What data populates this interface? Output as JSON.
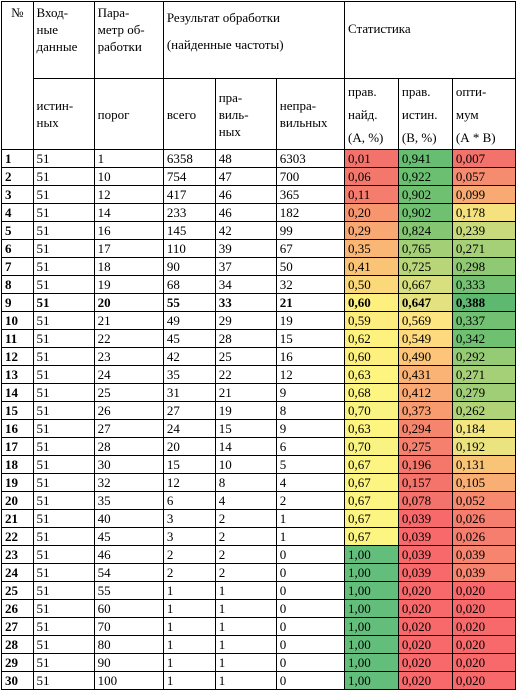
{
  "header": {
    "num": "№",
    "input_group": "Вход-\nные\nданные",
    "param_group": "Пара-\nметр об-\nработки",
    "result_group": "Результат обработки\n(найденные частоты)",
    "stats_group": "Статистика",
    "col_true": "истин-\nных",
    "col_threshold": "порог",
    "col_total": "всего",
    "col_correct": "пра-\nвиль-\nных",
    "col_wrong": "непра-\nвильных",
    "col_a": "прав.\nнайд.\n(А, %)",
    "col_b": "прав.\nистин.\n(В, %)",
    "col_ab": "опти-\nмум\n(А * В)"
  },
  "rows": [
    {
      "n": "1",
      "inp": "51",
      "thr": "1",
      "total": "6358",
      "corr": "48",
      "wrong": "6303",
      "a": "0,01",
      "b": "0,941",
      "ab": "0,007",
      "ca": "#f4726c",
      "cb": "#67bd71",
      "cab": "#f4726c"
    },
    {
      "n": "2",
      "inp": "51",
      "thr": "10",
      "total": "754",
      "corr": "47",
      "wrong": "700",
      "a": "0,06",
      "b": "0,922",
      "ab": "0,057",
      "ca": "#f4776c",
      "cb": "#6bbf71",
      "cab": "#f58c6f"
    },
    {
      "n": "3",
      "inp": "51",
      "thr": "12",
      "total": "417",
      "corr": "46",
      "wrong": "365",
      "a": "0,11",
      "b": "0,902",
      "ab": "0,099",
      "ca": "#f57d6d",
      "cb": "#70c071",
      "cab": "#f8aa72"
    },
    {
      "n": "4",
      "inp": "51",
      "thr": "14",
      "total": "233",
      "corr": "46",
      "wrong": "182",
      "a": "0,20",
      "b": "0,902",
      "ab": "0,178",
      "ca": "#f7956f",
      "cb": "#70c071",
      "cab": "#f6e17f"
    },
    {
      "n": "5",
      "inp": "51",
      "thr": "16",
      "total": "145",
      "corr": "42",
      "wrong": "99",
      "a": "0,29",
      "b": "0,824",
      "ab": "0,239",
      "ca": "#f8a872",
      "cb": "#85c673",
      "cab": "#c8da7c"
    },
    {
      "n": "6",
      "inp": "51",
      "thr": "17",
      "total": "110",
      "corr": "39",
      "wrong": "67",
      "a": "0,35",
      "b": "0,765",
      "ab": "0,271",
      "ca": "#f9b674",
      "cb": "#a3cf77",
      "cab": "#a6d077"
    },
    {
      "n": "7",
      "inp": "51",
      "thr": "18",
      "total": "90",
      "corr": "37",
      "wrong": "50",
      "a": "0,41",
      "b": "0,725",
      "ab": "0,298",
      "ca": "#fac476",
      "cb": "#b8d57a",
      "cab": "#8fc973"
    },
    {
      "n": "8",
      "inp": "51",
      "thr": "19",
      "total": "68",
      "corr": "34",
      "wrong": "32",
      "a": "0,50",
      "b": "0,667",
      "ab": "0,333",
      "ca": "#fbd879",
      "cb": "#d8df7f",
      "cab": "#74c172"
    },
    {
      "n": "9",
      "inp": "51",
      "thr": "20",
      "total": "55",
      "corr": "33",
      "wrong": "21",
      "a": "0,60",
      "b": "0,647",
      "ab": "0,388",
      "ca": "#fdf07f",
      "cb": "#e4e280",
      "cab": "#5db96f",
      "bold": true
    },
    {
      "n": "10",
      "inp": "51",
      "thr": "21",
      "total": "49",
      "corr": "29",
      "wrong": "19",
      "a": "0,59",
      "b": "0,569",
      "ab": "0,337",
      "ca": "#fdec7e",
      "cb": "#fde582",
      "cab": "#72c072"
    },
    {
      "n": "11",
      "inp": "51",
      "thr": "22",
      "total": "45",
      "corr": "28",
      "wrong": "15",
      "a": "0,62",
      "b": "0,549",
      "ab": "0,342",
      "ca": "#fef27f",
      "cb": "#fdda7d",
      "cab": "#70c072"
    },
    {
      "n": "12",
      "inp": "51",
      "thr": "23",
      "total": "42",
      "corr": "25",
      "wrong": "16",
      "a": "0,60",
      "b": "0,490",
      "ab": "0,292",
      "ca": "#fdf07f",
      "cb": "#fcc579",
      "cab": "#94cb74"
    },
    {
      "n": "13",
      "inp": "51",
      "thr": "24",
      "total": "35",
      "corr": "22",
      "wrong": "12",
      "a": "0,63",
      "b": "0,431",
      "ab": "0,271",
      "ca": "#fef480",
      "cb": "#fab375",
      "cab": "#a6d077"
    },
    {
      "n": "14",
      "inp": "51",
      "thr": "25",
      "total": "31",
      "corr": "21",
      "wrong": "9",
      "a": "0,68",
      "b": "0,412",
      "ab": "0,279",
      "ca": "#fdf581",
      "cb": "#f9a973",
      "cab": "#a0ce76"
    },
    {
      "n": "15",
      "inp": "51",
      "thr": "26",
      "total": "27",
      "corr": "19",
      "wrong": "8",
      "a": "0,70",
      "b": "0,373",
      "ab": "0,262",
      "ca": "#f9f481",
      "cb": "#f89c70",
      "cab": "#b0d378"
    },
    {
      "n": "16",
      "inp": "51",
      "thr": "27",
      "total": "24",
      "corr": "15",
      "wrong": "9",
      "a": "0,63",
      "b": "0,294",
      "ab": "0,184",
      "ca": "#fef480",
      "cb": "#f6856d",
      "cab": "#f3e57f"
    },
    {
      "n": "17",
      "inp": "51",
      "thr": "28",
      "total": "20",
      "corr": "14",
      "wrong": "6",
      "a": "0,70",
      "b": "0,275",
      "ab": "0,192",
      "ca": "#f9f481",
      "cb": "#f5806d",
      "cab": "#eae380"
    },
    {
      "n": "18",
      "inp": "51",
      "thr": "30",
      "total": "15",
      "corr": "10",
      "wrong": "5",
      "a": "0,67",
      "b": "0,196",
      "ab": "0,131",
      "ca": "#fdf581",
      "cb": "#f5776c",
      "cab": "#fac476"
    },
    {
      "n": "19",
      "inp": "51",
      "thr": "32",
      "total": "12",
      "corr": "8",
      "wrong": "4",
      "a": "0,67",
      "b": "0,157",
      "ab": "0,105",
      "ca": "#fdf581",
      "cb": "#f4746c",
      "cab": "#f9ae73"
    },
    {
      "n": "20",
      "inp": "51",
      "thr": "35",
      "total": "6",
      "corr": "4",
      "wrong": "2",
      "a": "0,67",
      "b": "0,078",
      "ab": "0,052",
      "ca": "#fdf581",
      "cb": "#f4726c",
      "cab": "#f58a6f"
    },
    {
      "n": "21",
      "inp": "51",
      "thr": "40",
      "total": "3",
      "corr": "2",
      "wrong": "1",
      "a": "0,67",
      "b": "0,039",
      "ab": "0,026",
      "ca": "#fdf581",
      "cb": "#f8696b",
      "cab": "#f57e6e"
    },
    {
      "n": "22",
      "inp": "51",
      "thr": "45",
      "total": "3",
      "corr": "2",
      "wrong": "1",
      "a": "0,67",
      "b": "0,039",
      "ab": "0,026",
      "ca": "#fdf581",
      "cb": "#f8696b",
      "cab": "#f57e6e"
    },
    {
      "n": "23",
      "inp": "51",
      "thr": "46",
      "total": "2",
      "corr": "2",
      "wrong": "0",
      "a": "1,00",
      "b": "0,039",
      "ab": "0,039",
      "ca": "#63be7b",
      "cb": "#f8696b",
      "cab": "#f6846e"
    },
    {
      "n": "24",
      "inp": "51",
      "thr": "54",
      "total": "2",
      "corr": "2",
      "wrong": "0",
      "a": "1,00",
      "b": "0,039",
      "ab": "0,039",
      "ca": "#63be7b",
      "cb": "#f8696b",
      "cab": "#f6846e"
    },
    {
      "n": "25",
      "inp": "51",
      "thr": "55",
      "total": "1",
      "corr": "1",
      "wrong": "0",
      "a": "1,00",
      "b": "0,020",
      "ab": "0,020",
      "ca": "#63be7b",
      "cb": "#f8696b",
      "cab": "#f8696b"
    },
    {
      "n": "26",
      "inp": "51",
      "thr": "60",
      "total": "1",
      "corr": "1",
      "wrong": "0",
      "a": "1,00",
      "b": "0,020",
      "ab": "0,020",
      "ca": "#63be7b",
      "cb": "#f8696b",
      "cab": "#f8696b"
    },
    {
      "n": "27",
      "inp": "51",
      "thr": "70",
      "total": "1",
      "corr": "1",
      "wrong": "0",
      "a": "1,00",
      "b": "0,020",
      "ab": "0,020",
      "ca": "#63be7b",
      "cb": "#f8696b",
      "cab": "#f8696b"
    },
    {
      "n": "28",
      "inp": "51",
      "thr": "80",
      "total": "1",
      "corr": "1",
      "wrong": "0",
      "a": "1,00",
      "b": "0,020",
      "ab": "0,020",
      "ca": "#63be7b",
      "cb": "#f8696b",
      "cab": "#f8696b"
    },
    {
      "n": "29",
      "inp": "51",
      "thr": "90",
      "total": "1",
      "corr": "1",
      "wrong": "0",
      "a": "1,00",
      "b": "0,020",
      "ab": "0,020",
      "ca": "#63be7b",
      "cb": "#f8696b",
      "cab": "#f8696b"
    },
    {
      "n": "30",
      "inp": "51",
      "thr": "100",
      "total": "1",
      "corr": "1",
      "wrong": "0",
      "a": "1,00",
      "b": "0,020",
      "ab": "0,020",
      "ca": "#63be7b",
      "cb": "#f8696b",
      "cab": "#f8696b"
    }
  ]
}
